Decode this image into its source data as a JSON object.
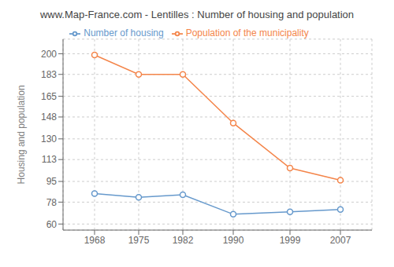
{
  "chart_data": {
    "type": "line",
    "title": "www.Map-France.com - Lentilles : Number of housing and population",
    "ylabel": "Housing and population",
    "x": [
      1968,
      1975,
      1982,
      1990,
      1999,
      2007
    ],
    "series": [
      {
        "name": "Number of housing",
        "color": "#6699cc",
        "values": [
          85,
          82,
          84,
          68,
          70,
          72
        ],
        "marker": "o"
      },
      {
        "name": "Population of the municipality",
        "color": "#f4854a",
        "values": [
          199,
          183,
          183,
          143,
          106,
          96
        ],
        "marker": "o"
      }
    ],
    "xlim": [
      1963,
      2012
    ],
    "xticks": [
      1968,
      1975,
      1982,
      1990,
      1999,
      2007
    ],
    "ylim": [
      55,
      212
    ],
    "yticks": [
      60,
      78,
      95,
      113,
      130,
      148,
      165,
      183,
      200
    ],
    "grid": true,
    "legend": "top"
  }
}
